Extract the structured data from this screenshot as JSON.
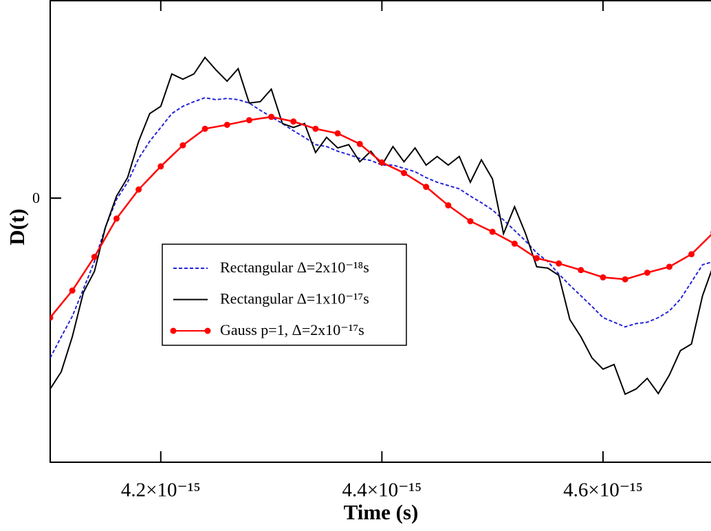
{
  "chart_data": {
    "type": "line",
    "x_label": "Time (s)",
    "y_label": "D(t)",
    "xlim": [
      4.1e-15,
      4.7e-15
    ],
    "xticks": [
      {
        "value": 4.2e-15,
        "label": "4.2×10⁻¹⁵"
      },
      {
        "value": 4.4e-15,
        "label": "4.4×10⁻¹⁵"
      },
      {
        "value": 4.6e-15,
        "label": "4.6×10⁻¹⁵"
      }
    ],
    "ylim": [
      -4,
      3
    ],
    "yticks": [
      0
    ],
    "x": [
      4.1e-15,
      4.11e-15,
      4.12e-15,
      4.13e-15,
      4.14e-15,
      4.15e-15,
      4.16e-15,
      4.17e-15,
      4.18e-15,
      4.19e-15,
      4.2e-15,
      4.21e-15,
      4.22e-15,
      4.23e-15,
      4.24e-15,
      4.25e-15,
      4.26e-15,
      4.27e-15,
      4.28e-15,
      4.29e-15,
      4.3e-15,
      4.31e-15,
      4.32e-15,
      4.33e-15,
      4.34e-15,
      4.35e-15,
      4.36e-15,
      4.37e-15,
      4.38e-15,
      4.39e-15,
      4.4e-15,
      4.41e-15,
      4.42e-15,
      4.43e-15,
      4.44e-15,
      4.45e-15,
      4.46e-15,
      4.47e-15,
      4.48e-15,
      4.49e-15,
      4.5e-15,
      4.51e-15,
      4.52e-15,
      4.53e-15,
      4.54e-15,
      4.55e-15,
      4.56e-15,
      4.57e-15,
      4.58e-15,
      4.59e-15,
      4.6e-15,
      4.61e-15,
      4.62e-15,
      4.63e-15,
      4.64e-15,
      4.65e-15,
      4.66e-15,
      4.67e-15,
      4.68e-15,
      4.69e-15,
      4.7e-15
    ],
    "series": [
      {
        "name": "Rectangular Δ=2x10⁻¹⁸s",
        "color": "#2424d8",
        "style": "dashed",
        "values": [
          -2.42,
          -2.1,
          -1.79,
          -1.38,
          -0.96,
          -0.44,
          -0.02,
          0.24,
          0.6,
          0.86,
          1.07,
          1.28,
          1.39,
          1.46,
          1.52,
          1.49,
          1.51,
          1.49,
          1.44,
          1.33,
          1.23,
          1.13,
          1.02,
          0.92,
          0.81,
          0.78,
          0.71,
          0.66,
          0.6,
          0.57,
          0.5,
          0.5,
          0.45,
          0.4,
          0.31,
          0.24,
          0.19,
          0.14,
          0.03,
          -0.07,
          -0.18,
          -0.33,
          -0.49,
          -0.65,
          -0.83,
          -0.96,
          -1.15,
          -1.32,
          -1.48,
          -1.64,
          -1.81,
          -1.88,
          -1.95,
          -1.9,
          -1.88,
          -1.81,
          -1.71,
          -1.53,
          -1.27,
          -1.01,
          -0.96
        ]
      },
      {
        "name": "Rectangular Δ=1x10⁻¹⁷s",
        "color": "#000000",
        "style": "solid",
        "values": [
          -2.89,
          -2.63,
          -2.1,
          -1.43,
          -1.11,
          -0.44,
          0.03,
          0.31,
          0.86,
          1.28,
          1.39,
          1.88,
          1.8,
          1.88,
          2.13,
          1.94,
          1.77,
          1.96,
          1.44,
          1.46,
          1.65,
          1.13,
          1.07,
          1.13,
          0.69,
          0.92,
          0.76,
          0.81,
          0.55,
          0.71,
          0.5,
          0.78,
          0.55,
          0.76,
          0.5,
          0.63,
          0.5,
          0.63,
          0.24,
          0.58,
          0.29,
          -0.54,
          -0.13,
          -0.54,
          -1.04,
          -1.06,
          -1.17,
          -1.84,
          -2.1,
          -2.42,
          -2.59,
          -2.52,
          -2.97,
          -2.89,
          -2.73,
          -2.96,
          -2.68,
          -2.31,
          -2.21,
          -1.48,
          -1.01
        ]
      },
      {
        "name": "Gauss  p=1, Δ=2x10⁻¹⁷s",
        "color": "#ff0000",
        "style": "markers",
        "x": [
          4.1e-15,
          4.12e-15,
          4.14e-15,
          4.16e-15,
          4.18e-15,
          4.2e-15,
          4.22e-15,
          4.24e-15,
          4.26e-15,
          4.28e-15,
          4.3e-15,
          4.32e-15,
          4.34e-15,
          4.36e-15,
          4.38e-15,
          4.4e-15,
          4.42e-15,
          4.44e-15,
          4.46e-15,
          4.48e-15,
          4.5e-15,
          4.52e-15,
          4.54e-15,
          4.56e-15,
          4.58e-15,
          4.6e-15,
          4.62e-15,
          4.64e-15,
          4.66e-15,
          4.68e-15,
          4.7e-15
        ],
        "values": [
          -1.81,
          -1.4,
          -0.89,
          -0.31,
          0.13,
          0.48,
          0.8,
          1.05,
          1.11,
          1.18,
          1.23,
          1.16,
          1.05,
          0.98,
          0.82,
          0.54,
          0.38,
          0.17,
          -0.11,
          -0.35,
          -0.51,
          -0.69,
          -0.91,
          -0.99,
          -1.09,
          -1.2,
          -1.23,
          -1.13,
          -1.04,
          -0.85,
          -0.52
        ]
      }
    ]
  }
}
